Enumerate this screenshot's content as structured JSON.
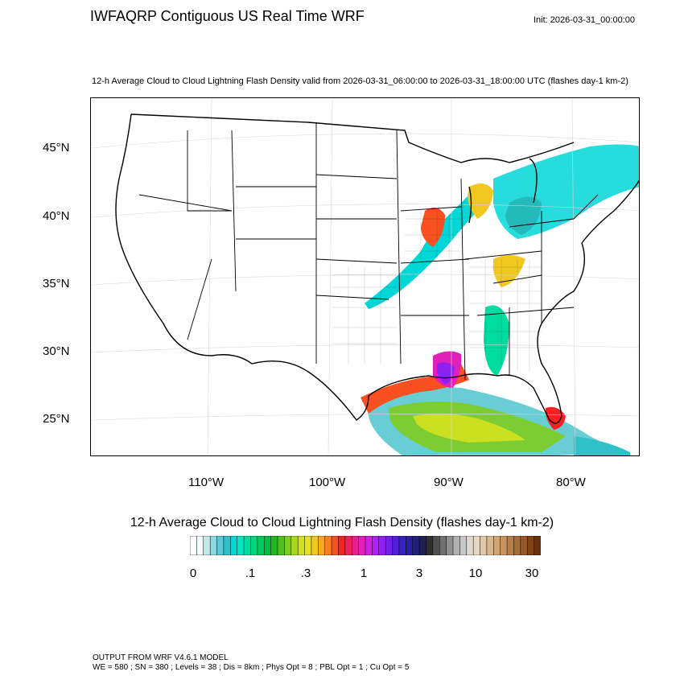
{
  "title": "IWFAQRP Contiguous US Real Time WRF",
  "init": "Init: 2026-03-31_00:00:00",
  "subtitle": "12-h Average Cloud to Cloud Lightning Flash Density valid from 2026-03-31_06:00:00 to 2026-03-31_18:00:00 UTC   (flashes day-1 km-2)",
  "lat_labels": [
    "45°N",
    "40°N",
    "35°N",
    "30°N",
    "25°N"
  ],
  "lon_labels": [
    "110°W",
    "100°W",
    "90°W",
    "80°W"
  ],
  "colorbar": {
    "title": "12-h Average Cloud to Cloud Lightning Flash Density  (flashes day-1 km-2)",
    "labels": [
      "0",
      ".1",
      ".3",
      "1",
      "3",
      "10",
      "30"
    ],
    "colors": [
      "#ffffff",
      "#f4fbfb",
      "#c2e8ea",
      "#8fd8dc",
      "#5cc8cf",
      "#2fc0c8",
      "#00d6d6",
      "#00e6c0",
      "#00dca0",
      "#00d280",
      "#00c860",
      "#00be40",
      "#20b820",
      "#50c020",
      "#80cc20",
      "#a8d820",
      "#d0e020",
      "#e8e020",
      "#f0c820",
      "#f8a820",
      "#f88020",
      "#f85020",
      "#f82020",
      "#f0205a",
      "#e8208c",
      "#e020b8",
      "#d020e0",
      "#b020f0",
      "#9020f0",
      "#7020e8",
      "#5020d8",
      "#3820c0",
      "#2820a0",
      "#202078",
      "#202050",
      "#303030",
      "#505050",
      "#707070",
      "#909090",
      "#b0b0b0",
      "#c8c8c8",
      "#dcd8d0",
      "#e8d8c0",
      "#e0c8a8",
      "#d8b890",
      "#d0a878",
      "#c89460",
      "#b88048",
      "#a86c38",
      "#985828",
      "#804418",
      "#683010"
    ]
  },
  "footer": {
    "line1": "OUTPUT FROM WRF V4.6.1 MODEL",
    "line2": "WE = 580 ; SN = 380 ; Levels = 38 ; Dis = 8km ; Phys Opt = 8 ; PBL Opt = 1 ; Cu Opt = 5"
  }
}
